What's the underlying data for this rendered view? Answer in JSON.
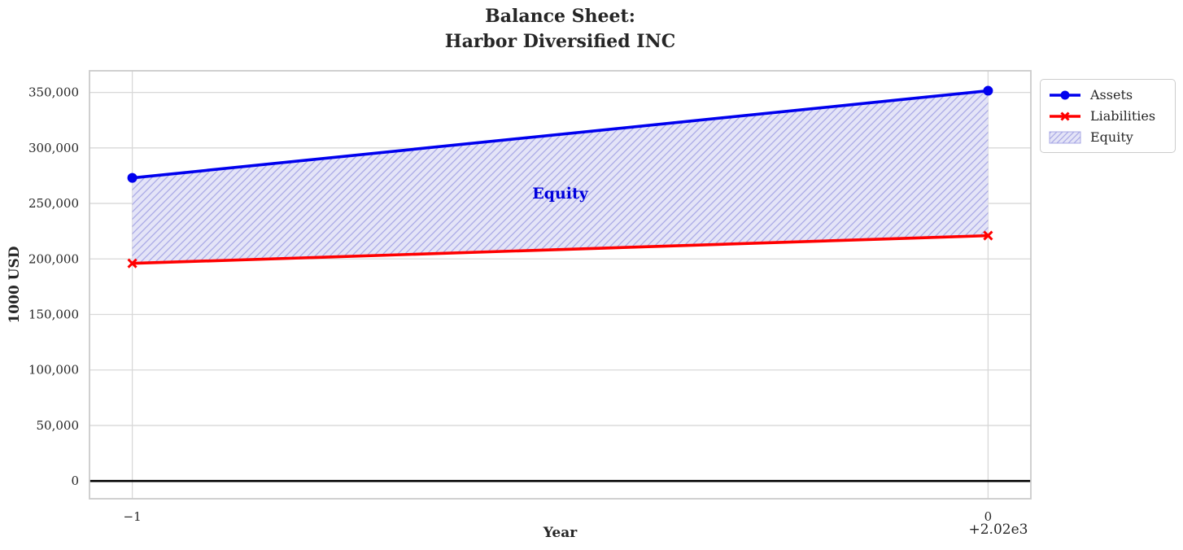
{
  "title": "Balance Sheet:\nHarbor Diversified INC",
  "chart_data": {
    "type": "line",
    "title": "Balance Sheet:\nHarbor Diversified INC",
    "xlabel": "Year",
    "ylabel": "1000 USD",
    "x": [
      -1,
      0
    ],
    "x_tick_labels": [
      "−1",
      "0"
    ],
    "x_offset_text": "+2.02e3",
    "x_values_absolute": [
      2019,
      2020
    ],
    "series": [
      {
        "name": "Assets",
        "values": [
          273000,
          351500
        ],
        "color": "#0000ee",
        "marker": "circle"
      },
      {
        "name": "Liabilities",
        "values": [
          196000,
          221000
        ],
        "color": "#ff0000",
        "marker": "x"
      }
    ],
    "fill_between": {
      "name": "Equity",
      "label_text": "Equity",
      "label_color": "#0000dd",
      "label_xy": [
        -0.5,
        259000
      ],
      "fill_color": "#e4e4f7",
      "hatch_color": "#a9a9e6",
      "values": [
        77000,
        130500
      ]
    },
    "yticks": [
      0,
      50000,
      100000,
      150000,
      200000,
      250000,
      300000,
      350000
    ],
    "ytick_labels": [
      "0",
      "50,000",
      "100,000",
      "150,000",
      "200,000",
      "250,000",
      "300,000",
      "350,000"
    ],
    "xlim": [
      -1.05,
      0.05
    ],
    "ylim": [
      -16000,
      369500
    ],
    "grid": true,
    "zero_line_y": 0,
    "legend": {
      "position": "upper-right-outside",
      "entries": [
        "Assets",
        "Liabilities",
        "Equity"
      ]
    },
    "axis_colors": {
      "text": "#262626",
      "grid": "#d8d8d8",
      "border": "#cbcbcb",
      "zero_line": "#000000"
    }
  }
}
